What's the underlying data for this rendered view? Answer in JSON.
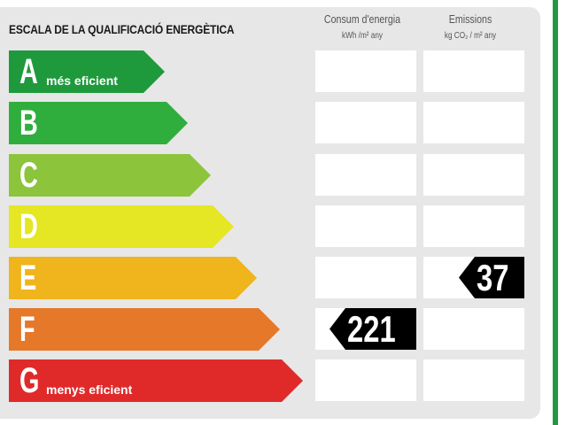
{
  "title": "ESCALA DE LA QUALIFICACIÓ ENERGÈTICA",
  "columns": {
    "consum": {
      "heading": "Consum d'energia",
      "unit": "kWh /m² any"
    },
    "emissions": {
      "heading": "Emissions",
      "unit": "kg CO₂ / m² any"
    }
  },
  "ratings": [
    {
      "letter": "A",
      "label": "més eficient",
      "color": "#1e9a3c"
    },
    {
      "letter": "B",
      "label": "",
      "color": "#2fae3e"
    },
    {
      "letter": "C",
      "label": "",
      "color": "#8cc43c"
    },
    {
      "letter": "D",
      "label": "",
      "color": "#e5e624"
    },
    {
      "letter": "E",
      "label": "",
      "color": "#f0b41c"
    },
    {
      "letter": "F",
      "label": "",
      "color": "#e6782a"
    },
    {
      "letter": "G",
      "label": "menys eficient",
      "color": "#e02a2a"
    }
  ],
  "consum_value": {
    "value": "221",
    "rating": "F"
  },
  "emissions_value": {
    "value": "37",
    "rating": "E"
  }
}
